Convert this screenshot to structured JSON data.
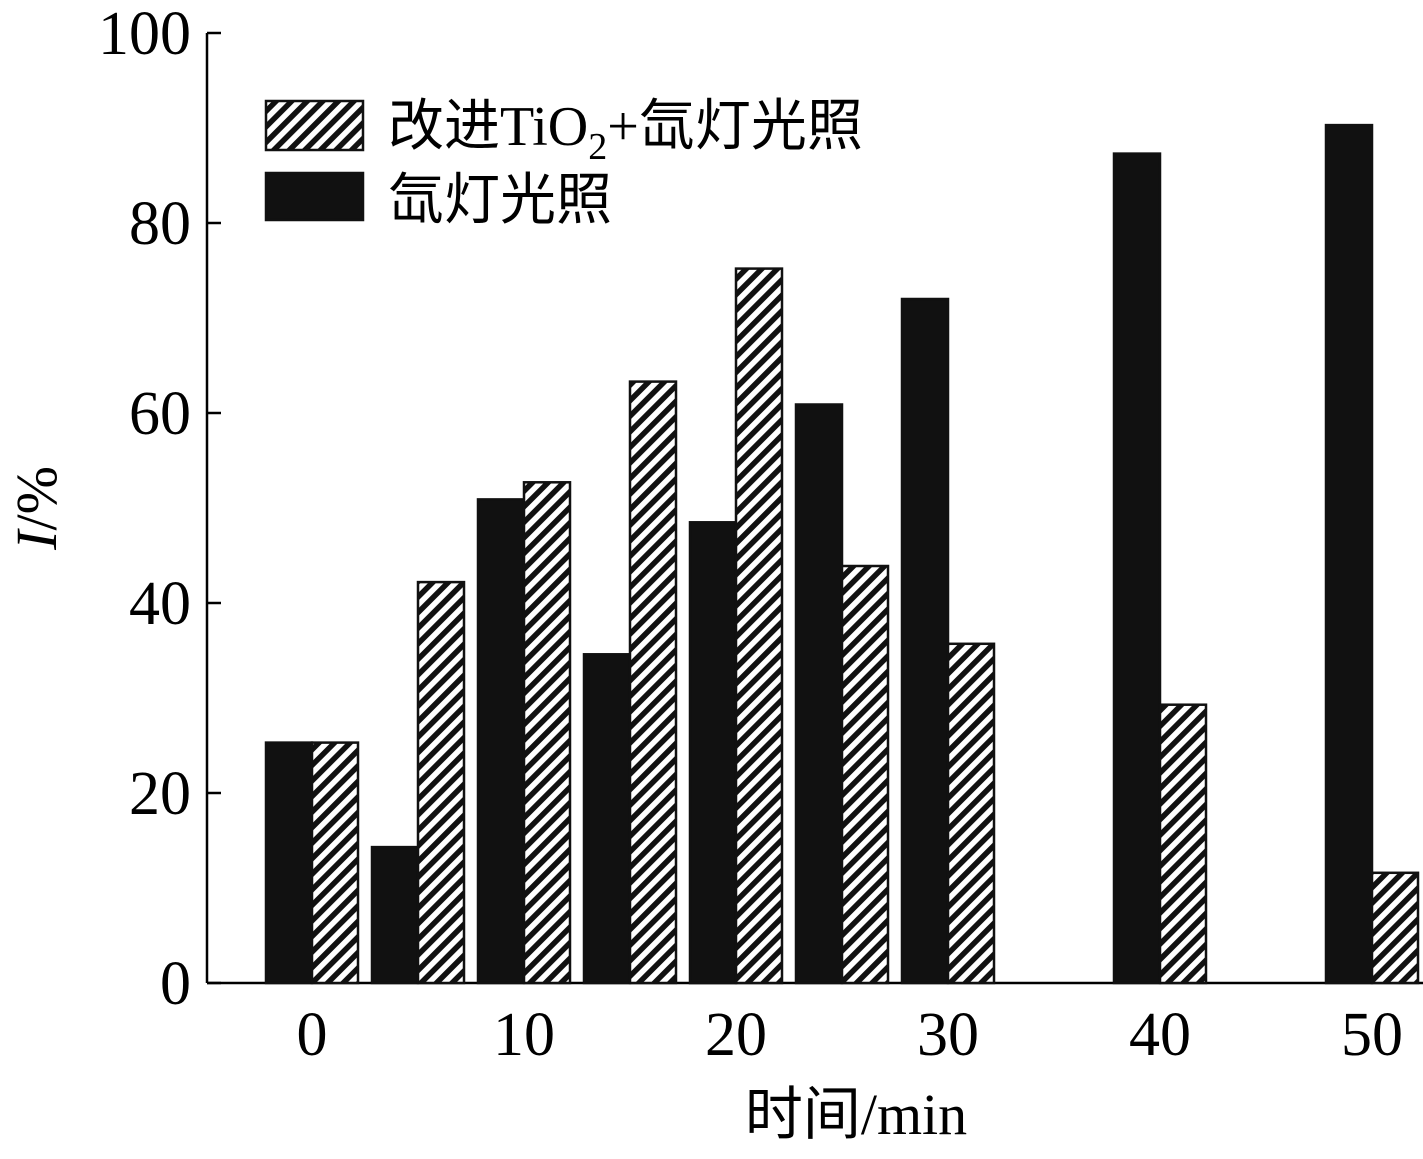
{
  "chart_data": {
    "type": "bar",
    "ylabel_var": "I",
    "ylabel_unit": "/%",
    "xlabel": "时间/min",
    "ylim": [
      0,
      100
    ],
    "y_ticks": [
      0,
      20,
      40,
      60,
      80,
      100
    ],
    "x_ticks": [
      0,
      10,
      20,
      30,
      40,
      50
    ],
    "legend_position": "top-left",
    "legend": [
      {
        "key": "tio2",
        "pre": "改进TiO",
        "sub": "2",
        "post": "+氙灯光照"
      },
      {
        "key": "xe",
        "text": "氙灯光照"
      }
    ],
    "series": [
      {
        "key": "xe",
        "name": "氙灯光照",
        "style": "solid",
        "color": "#111111",
        "points": [
          {
            "x": 0,
            "y": 25.3
          },
          {
            "x": 5,
            "y": 14.3
          },
          {
            "x": 10,
            "y": 50.9
          },
          {
            "x": 15,
            "y": 34.6
          },
          {
            "x": 20,
            "y": 48.5
          },
          {
            "x": 25,
            "y": 60.9
          },
          {
            "x": 30,
            "y": 72.0
          },
          {
            "x": 40,
            "y": 87.3
          },
          {
            "x": 50,
            "y": 90.3
          }
        ]
      },
      {
        "key": "tio2",
        "name": "改进TiO2+氙灯光照",
        "style": "hatched",
        "color": "#111111",
        "points": [
          {
            "x": 0,
            "y": 25.3
          },
          {
            "x": 5,
            "y": 42.2
          },
          {
            "x": 10,
            "y": 52.7
          },
          {
            "x": 15,
            "y": 63.3
          },
          {
            "x": 20,
            "y": 75.2
          },
          {
            "x": 25,
            "y": 43.9
          },
          {
            "x": 30,
            "y": 35.7
          },
          {
            "x": 40,
            "y": 29.3
          },
          {
            "x": 50,
            "y": 11.6
          }
        ]
      }
    ]
  }
}
